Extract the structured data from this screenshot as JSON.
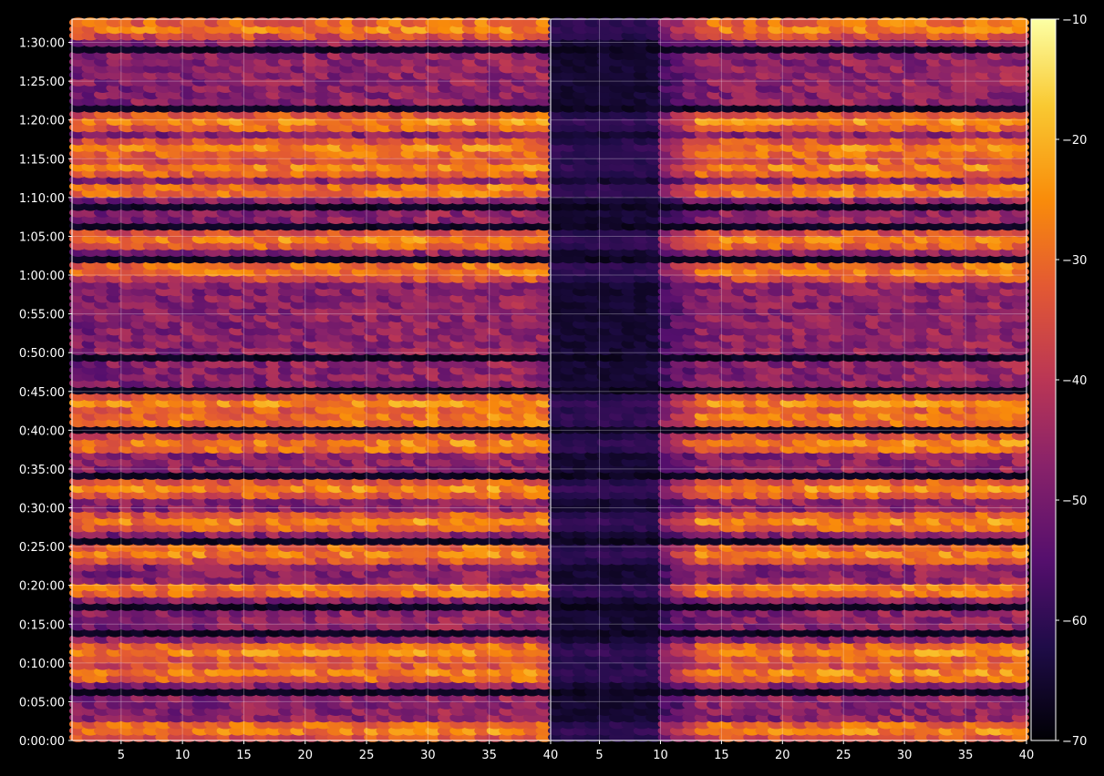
{
  "chart_data": {
    "type": "heatmap",
    "title": "",
    "background": "#000000",
    "colormap": "inferno",
    "grid": true,
    "panels": [
      {
        "name": "",
        "x_range": [
          1,
          40
        ],
        "x_ticks": [
          "5",
          "10",
          "15",
          "20",
          "25",
          "30",
          "35",
          "40"
        ]
      },
      {
        "name": "",
        "x_range": [
          1,
          40
        ],
        "x_ticks": [
          "5",
          "10",
          "15",
          "20",
          "25",
          "30",
          "35",
          "40"
        ]
      }
    ],
    "y_ticks": [
      "0:00:00",
      "0:05:00",
      "0:10:00",
      "0:15:00",
      "0:20:00",
      "0:25:00",
      "0:30:00",
      "0:35:00",
      "0:40:00",
      "0:45:00",
      "0:50:00",
      "0:55:00",
      "1:00:00",
      "1:05:00",
      "1:10:00",
      "1:15:00",
      "1:20:00",
      "1:25:00",
      "1:30:00"
    ],
    "y_range_minutes": [
      0,
      93
    ],
    "colorbar": {
      "range": [
        -70,
        -10
      ],
      "ticks": [
        "−10",
        "−20",
        "−30",
        "−40",
        "−50",
        "−60",
        "−70"
      ]
    },
    "bright_bands_minutes": [
      1.5,
      8.7,
      11.5,
      19.5,
      24.3,
      28.2,
      32.5,
      38.2,
      41.5,
      43.5,
      60.8,
      64.5,
      71.0,
      73.8,
      76.3,
      79.8,
      92.0
    ],
    "dark_gaps_minutes": [
      6.5,
      14.2,
      17.5,
      26.0,
      34.5,
      39.8,
      45.2,
      49.8,
      62.2,
      66.5,
      69.0,
      81.5,
      89.0
    ],
    "right_panel_dark_columns": [
      1,
      9
    ]
  }
}
